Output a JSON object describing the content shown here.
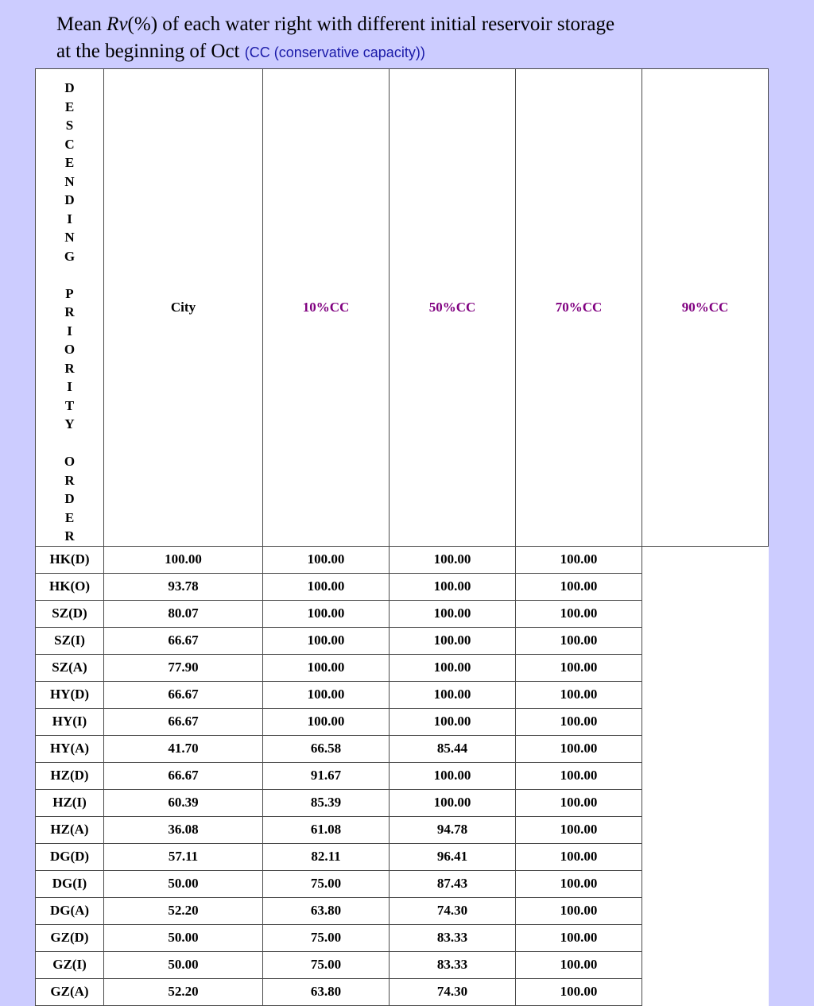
{
  "title": {
    "part1": "Mean ",
    "variable": "Rv",
    "part2": "(%)  of each water right with different initial reservoir storage",
    "line2": "at the beginning of Oct ",
    "note": "(CC (conservative capacity))"
  },
  "table": {
    "side_letters": [
      "D",
      "E",
      "S",
      "C",
      "E",
      "N",
      "D",
      "I",
      "N",
      "G",
      "",
      "P",
      "R",
      "I",
      "O",
      "R",
      "I",
      "T",
      "Y",
      "",
      "O",
      "R",
      "D",
      "E",
      "R"
    ],
    "headers": [
      "City",
      "10%CC",
      "50%CC",
      "70%CC",
      "90%CC"
    ],
    "rows": [
      [
        "HK(D)",
        "100.00",
        "100.00",
        "100.00",
        "100.00"
      ],
      [
        "HK(O)",
        "93.78",
        "100.00",
        "100.00",
        "100.00"
      ],
      [
        "SZ(D)",
        "80.07",
        "100.00",
        "100.00",
        "100.00"
      ],
      [
        "SZ(I)",
        "66.67",
        "100.00",
        "100.00",
        "100.00"
      ],
      [
        "SZ(A)",
        "77.90",
        "100.00",
        "100.00",
        "100.00"
      ],
      [
        "HY(D)",
        "66.67",
        "100.00",
        "100.00",
        "100.00"
      ],
      [
        "HY(I)",
        "66.67",
        "100.00",
        "100.00",
        "100.00"
      ],
      [
        "HY(A)",
        "41.70",
        "66.58",
        "85.44",
        "100.00"
      ],
      [
        "HZ(D)",
        "66.67",
        "91.67",
        "100.00",
        "100.00"
      ],
      [
        "HZ(I)",
        "60.39",
        "85.39",
        "100.00",
        "100.00"
      ],
      [
        "HZ(A)",
        "36.08",
        "61.08",
        "94.78",
        "100.00"
      ],
      [
        "DG(D)",
        "57.11",
        "82.11",
        "96.41",
        "100.00"
      ],
      [
        "DG(I)",
        "50.00",
        "75.00",
        "87.43",
        "100.00"
      ],
      [
        "DG(A)",
        "52.20",
        "63.80",
        "74.30",
        "100.00"
      ],
      [
        "GZ(D)",
        "50.00",
        "75.00",
        "83.33",
        "100.00"
      ],
      [
        "GZ(I)",
        "50.00",
        "75.00",
        "83.33",
        "100.00"
      ],
      [
        "GZ(A)",
        "52.20",
        "63.80",
        "74.30",
        "100.00"
      ]
    ]
  }
}
